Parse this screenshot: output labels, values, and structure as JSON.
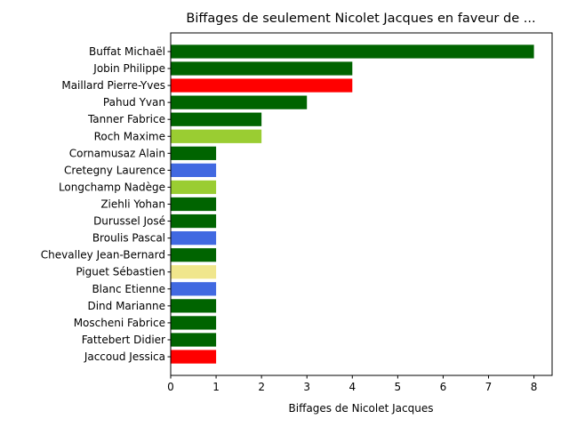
{
  "chart_data": {
    "type": "bar",
    "orientation": "horizontal",
    "title": "Biffages de seulement Nicolet Jacques en faveur de ...",
    "xlabel": "Biffages de Nicolet Jacques",
    "ylabel": "",
    "xlim": [
      0,
      8.4
    ],
    "xticks": [
      0,
      1,
      2,
      3,
      4,
      5,
      6,
      7,
      8
    ],
    "grid": false,
    "categories": [
      "Buffat Michaël",
      "Jobin Philippe",
      "Maillard Pierre-Yves",
      "Pahud Yvan",
      "Tanner Fabrice",
      "Roch Maxime",
      "Cornamusaz Alain",
      "Cretegny Laurence",
      "Longchamp Nadège",
      "Ziehli Yohan",
      "Durussel José",
      "Broulis Pascal",
      "Chevalley Jean-Bernard",
      "Piguet Sébastien",
      "Blanc Etienne",
      "Dind Marianne",
      "Moscheni Fabrice",
      "Fattebert Didier",
      "Jaccoud Jessica"
    ],
    "values": [
      8,
      4,
      4,
      3,
      2,
      2,
      1,
      1,
      1,
      1,
      1,
      1,
      1,
      1,
      1,
      1,
      1,
      1,
      1
    ],
    "colors": [
      "#006400",
      "#006400",
      "#ff0000",
      "#006400",
      "#006400",
      "#9acd32",
      "#006400",
      "#4169e1",
      "#9acd32",
      "#006400",
      "#006400",
      "#4169e1",
      "#006400",
      "#f0e68c",
      "#4169e1",
      "#006400",
      "#006400",
      "#006400",
      "#ff0000"
    ]
  }
}
